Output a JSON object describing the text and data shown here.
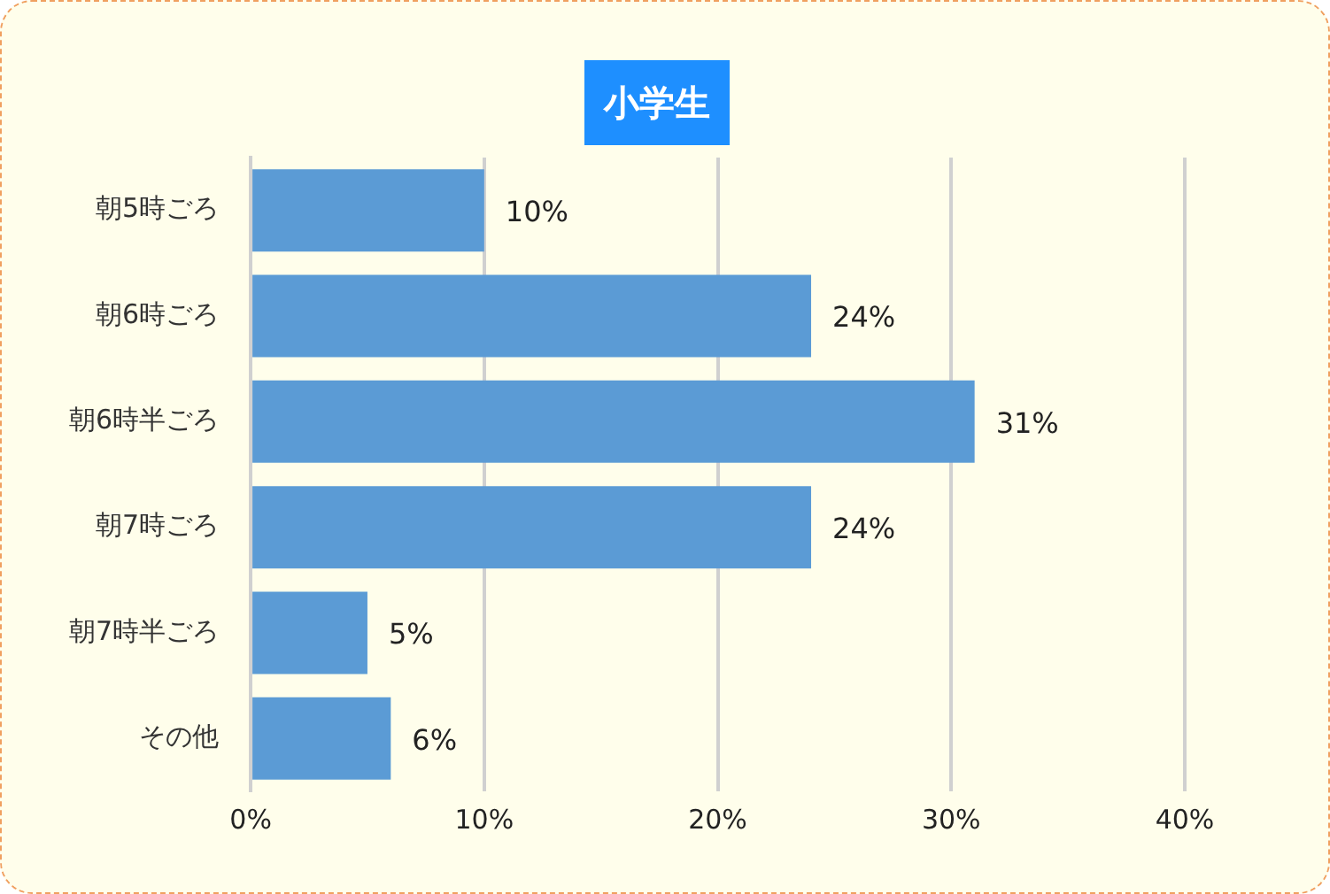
{
  "chart_data": {
    "type": "bar",
    "orientation": "horizontal",
    "title": "小学生",
    "categories": [
      "朝5時ごろ",
      "朝6時ごろ",
      "朝6時半ごろ",
      "朝7時ごろ",
      "朝7時半ごろ",
      "その他"
    ],
    "values": [
      10,
      24,
      31,
      24,
      5,
      6
    ],
    "value_labels": [
      "10%",
      "24%",
      "31%",
      "24%",
      "5%",
      "6%"
    ],
    "color": "#5b9bd5",
    "xlim": [
      0,
      40
    ],
    "xticks": [
      {
        "value": 0,
        "label": "0%"
      },
      {
        "value": 10,
        "label": "10%"
      },
      {
        "value": 20,
        "label": "20%"
      },
      {
        "value": 30,
        "label": "30%"
      },
      {
        "value": 40,
        "label": "40%"
      }
    ],
    "grid": "x",
    "legend": false
  }
}
